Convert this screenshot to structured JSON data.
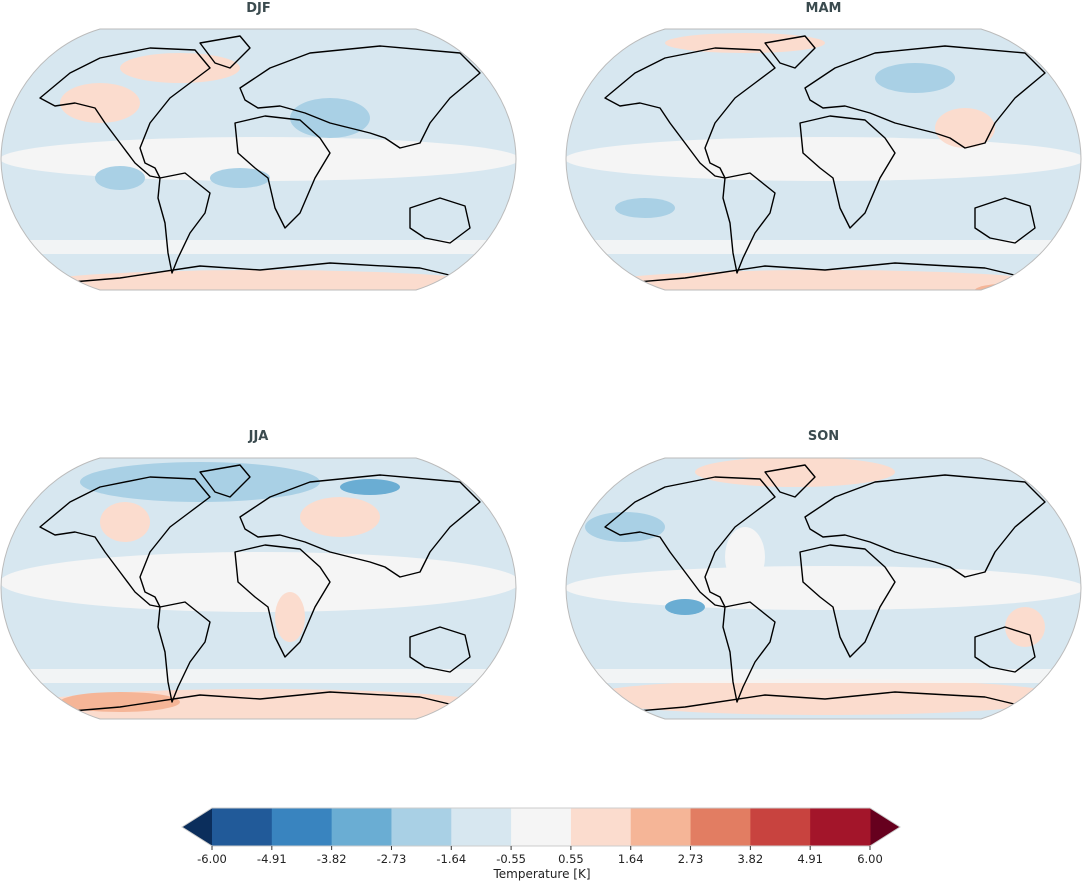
{
  "panels": [
    {
      "title": "DJF"
    },
    {
      "title": "MAM"
    },
    {
      "title": "JJA"
    },
    {
      "title": "SON"
    }
  ],
  "colorbar": {
    "label": "Temperature [K]",
    "ticks": [
      "-6.00",
      "-4.91",
      "-3.82",
      "-2.73",
      "-1.64",
      "-0.55",
      "0.55",
      "1.64",
      "2.73",
      "3.82",
      "4.91",
      "6.00"
    ],
    "colors": [
      "#215a99",
      "#3984bf",
      "#6aadd3",
      "#a9d0e5",
      "#d7e7f0",
      "#f5f5f5",
      "#fbdcce",
      "#f5b597",
      "#e27d62",
      "#c8433f",
      "#a3152a"
    ],
    "extend_low_color": "#0b2e5c",
    "extend_high_color": "#66001e",
    "extend": "both"
  },
  "colors": {
    "title": "#3b4b4f",
    "coastline": "#000000",
    "map_border": "#bbbbbb"
  }
}
